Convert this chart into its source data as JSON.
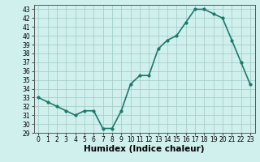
{
  "x": [
    0,
    1,
    2,
    3,
    4,
    5,
    6,
    7,
    8,
    9,
    10,
    11,
    12,
    13,
    14,
    15,
    16,
    17,
    18,
    19,
    20,
    21,
    22,
    23
  ],
  "y": [
    33.0,
    32.5,
    32.0,
    31.5,
    31.0,
    31.5,
    31.5,
    29.5,
    29.5,
    31.5,
    34.5,
    35.5,
    35.5,
    38.5,
    39.5,
    40.0,
    41.5,
    43.0,
    43.0,
    42.5,
    42.0,
    39.5,
    37.0,
    34.5
  ],
  "line_color": "#1a7a6a",
  "marker": "o",
  "marker_size": 2,
  "bg_color": "#d0f0ee",
  "grid_color": "#a0c8c4",
  "xlabel": "Humidex (Indice chaleur)",
  "xlim": [
    -0.5,
    23.5
  ],
  "ylim": [
    29,
    43.5
  ],
  "yticks": [
    29,
    30,
    31,
    32,
    33,
    34,
    35,
    36,
    37,
    38,
    39,
    40,
    41,
    42,
    43
  ],
  "xticks": [
    0,
    1,
    2,
    3,
    4,
    5,
    6,
    7,
    8,
    9,
    10,
    11,
    12,
    13,
    14,
    15,
    16,
    17,
    18,
    19,
    20,
    21,
    22,
    23
  ],
  "tick_fontsize": 5.5,
  "xlabel_fontsize": 7.5,
  "line_width": 1.2
}
